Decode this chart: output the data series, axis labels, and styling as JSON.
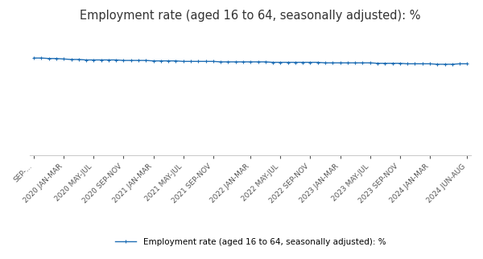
{
  "title": "Employment rate (aged 16 to 64, seasonally adjusted): %",
  "legend_label": "Employment rate (aged 16 to 64, seasonally adjusted): %",
  "line_color": "#1f6eb5",
  "marker": "+",
  "marker_size": 3,
  "line_width": 1.0,
  "background_color": "#ffffff",
  "grid_color": "#cccccc",
  "x_labels": [
    "SEP-...",
    "2020 JAN-MAR",
    "2020 MAY-JUL",
    "2020 SEP-NOV",
    "2021 JAN-MAR",
    "2021 MAY-JUL",
    "2021 SEP-NOV",
    "2022 JAN-MAR",
    "2022 MAY-JUL",
    "2022 SEP-NOV",
    "2023 JAN-MAR",
    "2023 MAY-JUL",
    "2023 SEP-NOV",
    "2024 JAN-MAR",
    "2024 JUN-AUG"
  ],
  "y_values": [
    75.3,
    75.3,
    75.2,
    75.2,
    75.1,
    75.0,
    75.0,
    74.9,
    74.9,
    74.9,
    74.9,
    74.9,
    74.8,
    74.8,
    74.8,
    74.8,
    74.7,
    74.7,
    74.7,
    74.7,
    74.6,
    74.6,
    74.6,
    74.6,
    74.6,
    74.5,
    74.5,
    74.5,
    74.5,
    74.5,
    74.5,
    74.5,
    74.4,
    74.4,
    74.4,
    74.4,
    74.4,
    74.4,
    74.4,
    74.3,
    74.3,
    74.3,
    74.3,
    74.3,
    74.3,
    74.3,
    74.2,
    74.2,
    74.2,
    74.2,
    74.1,
    74.1,
    74.1,
    74.1,
    74.0,
    74.0,
    74.0,
    74.1,
    74.1
  ],
  "ylim": [
    55.0,
    82.0
  ],
  "yticks": [
    60,
    65,
    70,
    75,
    80
  ],
  "title_fontsize": 10.5,
  "tick_fontsize": 6.5,
  "legend_fontsize": 7.5
}
